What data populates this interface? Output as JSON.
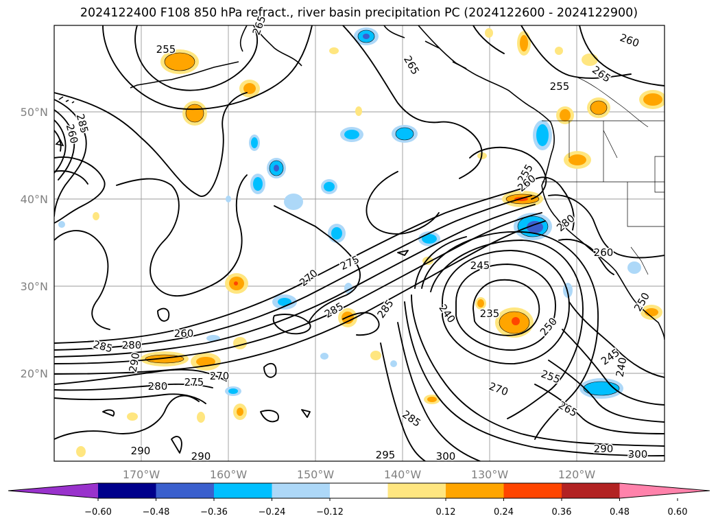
{
  "title": "2024122400 F108 850 hPa refract., river basin precipitation PC (2024122600 - 2024122900)",
  "map": {
    "lat_labels": [
      "50°N",
      "40°N",
      "30°N",
      "20°N"
    ],
    "lon_labels": [
      "170°W",
      "160°W",
      "150°W",
      "140°W",
      "130°W",
      "120°W"
    ],
    "contour_labels": [
      "255",
      "260",
      "265",
      "265",
      "255",
      "265",
      "285",
      "260",
      "255",
      "260",
      "280",
      "260",
      "270",
      "275",
      "245",
      "285",
      "285",
      "240",
      "235",
      "250",
      "260",
      "285",
      "280",
      "290",
      "280",
      "275",
      "270",
      "255",
      "245",
      "240",
      "270",
      "265",
      "285",
      "290",
      "290",
      "295",
      "300",
      "290",
      "300",
      "250"
    ],
    "contour_color": "#000000",
    "coastline_color": "#000000",
    "grid_color": "#999999"
  },
  "colorbar": {
    "ticks": [
      "−0.60",
      "−0.48",
      "−0.36",
      "−0.24",
      "−0.12",
      "0.12",
      "0.24",
      "0.36",
      "0.48",
      "0.60"
    ],
    "colors": [
      "#9932cc",
      "#00008b",
      "#3a5fcd",
      "#00bfff",
      "#add8f8",
      "#ffffff",
      "#ffe680",
      "#ffa500",
      "#ff4500",
      "#b22222",
      "#ff82ab"
    ]
  }
}
